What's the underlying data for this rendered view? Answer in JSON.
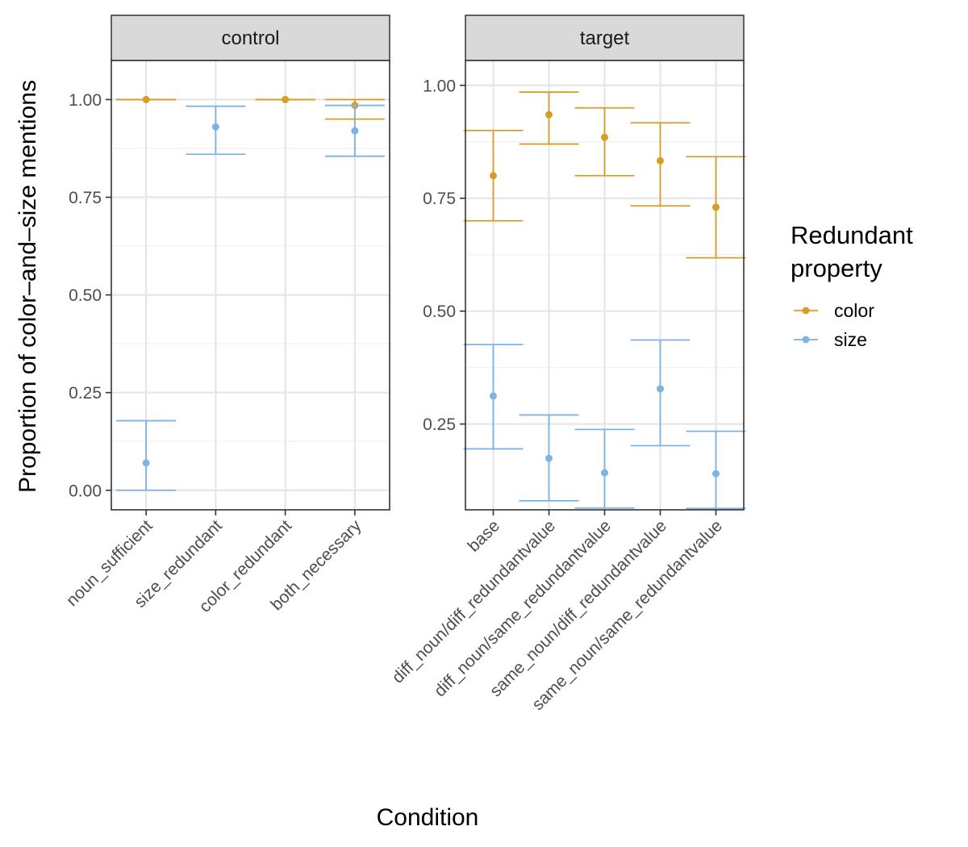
{
  "colors": {
    "color": "#D69E27",
    "size": "#7FB3E3"
  },
  "chart_data": {
    "type": "scatter",
    "xlabel": "Condition",
    "ylabel": "Proportion of color–and–size mentions",
    "legend": {
      "title_lines": [
        "Redundant",
        "property"
      ],
      "placement": "right",
      "entries": [
        {
          "key": "color",
          "label": "color"
        },
        {
          "key": "size",
          "label": "size"
        }
      ]
    },
    "grid": true,
    "panels": [
      {
        "strip": "control",
        "ylim": [
          -0.05,
          1.1
        ],
        "yticks": [
          0.0,
          0.25,
          0.5,
          0.75,
          1.0
        ],
        "ytick_labels": [
          "0.00",
          "0.25",
          "0.50",
          "0.75",
          "1.00"
        ],
        "categories": [
          "noun_sufficient",
          "size_redundant",
          "color_redundant",
          "both_necessary"
        ],
        "series": [
          {
            "name": "color",
            "points": [
              {
                "x": "noun_sufficient",
                "y": 1.0,
                "ymin": 1.0,
                "ymax": 1.0
              },
              {
                "x": "color_redundant",
                "y": 1.0,
                "ymin": 1.0,
                "ymax": 1.0
              },
              {
                "x": "both_necessary",
                "y": 0.985,
                "ymin": 0.95,
                "ymax": 1.0
              }
            ]
          },
          {
            "name": "size",
            "points": [
              {
                "x": "noun_sufficient",
                "y": 0.07,
                "ymin": 0.0,
                "ymax": 0.178
              },
              {
                "x": "size_redundant",
                "y": 0.93,
                "ymin": 0.86,
                "ymax": 0.983
              },
              {
                "x": "both_necessary",
                "y": 0.92,
                "ymin": 0.855,
                "ymax": 0.985
              }
            ]
          }
        ]
      },
      {
        "strip": "target",
        "ylim": [
          0.06,
          1.055
        ],
        "yticks": [
          0.25,
          0.5,
          0.75,
          1.0
        ],
        "ytick_labels": [
          "0.25",
          "0.50",
          "0.75",
          "1.00"
        ],
        "categories": [
          "base",
          "diff_noun/diff_redundantvalue",
          "diff_noun/same_redundantvalue",
          "same_noun/diff_redundantvalue",
          "same_noun/same_redundantvalue"
        ],
        "series": [
          {
            "name": "color",
            "points": [
              {
                "x": "base",
                "y": 0.8,
                "ymin": 0.7,
                "ymax": 0.9
              },
              {
                "x": "diff_noun/diff_redundantvalue",
                "y": 0.935,
                "ymin": 0.87,
                "ymax": 0.985
              },
              {
                "x": "diff_noun/same_redundantvalue",
                "y": 0.885,
                "ymin": 0.8,
                "ymax": 0.95
              },
              {
                "x": "same_noun/diff_redundantvalue",
                "y": 0.833,
                "ymin": 0.733,
                "ymax": 0.917
              },
              {
                "x": "same_noun/same_redundantvalue",
                "y": 0.73,
                "ymin": 0.618,
                "ymax": 0.842
              }
            ]
          },
          {
            "name": "size",
            "points": [
              {
                "x": "base",
                "y": 0.312,
                "ymin": 0.195,
                "ymax": 0.426
              },
              {
                "x": "diff_noun/diff_redundantvalue",
                "y": 0.174,
                "ymin": 0.08,
                "ymax": 0.27
              },
              {
                "x": "diff_noun/same_redundantvalue",
                "y": 0.142,
                "ymin": 0.064,
                "ymax": 0.238
              },
              {
                "x": "same_noun/diff_redundantvalue",
                "y": 0.328,
                "ymin": 0.202,
                "ymax": 0.436
              },
              {
                "x": "same_noun/same_redundantvalue",
                "y": 0.14,
                "ymin": 0.063,
                "ymax": 0.234
              }
            ]
          }
        ]
      }
    ]
  }
}
